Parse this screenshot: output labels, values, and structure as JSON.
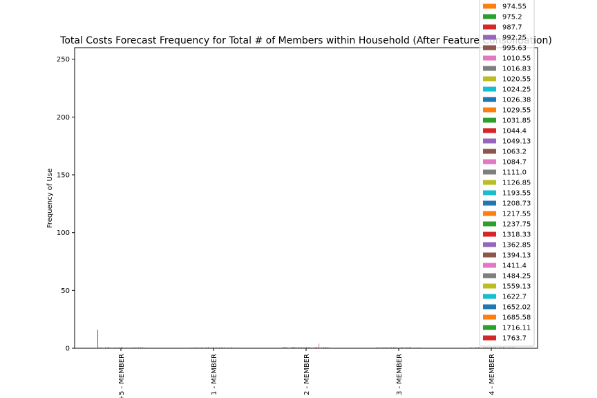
{
  "chart_data": {
    "type": "bar",
    "title": "Total Costs Forecast Frequency for Total # of Members within Household (After Feature Consolidation)",
    "xlabel": "",
    "ylabel": "Frequency of Use",
    "categories": [
      "+5 - MEMBER",
      "1 - MEMBER",
      "2 - MEMBER",
      "3 - MEMBER",
      "4 - MEMBER"
    ],
    "ylim": [
      0,
      260
    ],
    "yticks": [
      0,
      50,
      100,
      150,
      200,
      250
    ],
    "grid": false,
    "legend_position": "upper-right",
    "legend_entries": [
      {
        "name": "974.55",
        "color": "#ff7f0e"
      },
      {
        "name": "975.2",
        "color": "#2ca02c"
      },
      {
        "name": "987.7",
        "color": "#d62728"
      },
      {
        "name": "992.25",
        "color": "#9467bd"
      },
      {
        "name": "995.63",
        "color": "#8c564b"
      },
      {
        "name": "1010.55",
        "color": "#e377c2"
      },
      {
        "name": "1016.83",
        "color": "#7f7f7f"
      },
      {
        "name": "1020.55",
        "color": "#bcbd22"
      },
      {
        "name": "1024.25",
        "color": "#17becf"
      },
      {
        "name": "1026.38",
        "color": "#1f77b4"
      },
      {
        "name": "1029.55",
        "color": "#ff7f0e"
      },
      {
        "name": "1031.85",
        "color": "#2ca02c"
      },
      {
        "name": "1044.4",
        "color": "#d62728"
      },
      {
        "name": "1049.13",
        "color": "#9467bd"
      },
      {
        "name": "1063.2",
        "color": "#8c564b"
      },
      {
        "name": "1084.7",
        "color": "#e377c2"
      },
      {
        "name": "1111.0",
        "color": "#7f7f7f"
      },
      {
        "name": "1126.85",
        "color": "#bcbd22"
      },
      {
        "name": "1193.55",
        "color": "#17becf"
      },
      {
        "name": "1208.73",
        "color": "#1f77b4"
      },
      {
        "name": "1217.55",
        "color": "#ff7f0e"
      },
      {
        "name": "1237.75",
        "color": "#2ca02c"
      },
      {
        "name": "1318.33",
        "color": "#d62728"
      },
      {
        "name": "1362.85",
        "color": "#9467bd"
      },
      {
        "name": "1394.13",
        "color": "#8c564b"
      },
      {
        "name": "1411.4",
        "color": "#e377c2"
      },
      {
        "name": "1484.25",
        "color": "#7f7f7f"
      },
      {
        "name": "1559.13",
        "color": "#bcbd22"
      },
      {
        "name": "1622.7",
        "color": "#17becf"
      },
      {
        "name": "1652.02",
        "color": "#1f77b4"
      },
      {
        "name": "1685.58",
        "color": "#ff7f0e"
      },
      {
        "name": "1716.11",
        "color": "#2ca02c"
      },
      {
        "name": "1763.7",
        "color": "#d62728"
      }
    ],
    "series_colors": [
      "#1f77b4",
      "#ff7f0e",
      "#2ca02c",
      "#d62728",
      "#9467bd",
      "#8c564b",
      "#e377c2",
      "#7f7f7f",
      "#bcbd22",
      "#17becf"
    ],
    "bars_per_group": 60,
    "group_values": [
      [
        16,
        1,
        0,
        0,
        1,
        0,
        0,
        0,
        1,
        0,
        1,
        0,
        0,
        1,
        1,
        0,
        1,
        0,
        1,
        0,
        0,
        0,
        1,
        0,
        0,
        0,
        1,
        1,
        0,
        0,
        1,
        0,
        1,
        0,
        0,
        0,
        1,
        0,
        1,
        0,
        0,
        1,
        0,
        0,
        1,
        0,
        0,
        1,
        0,
        1,
        0,
        0,
        1,
        0,
        0,
        1,
        0,
        1,
        0,
        1
      ],
      [
        0,
        1,
        0,
        0,
        1,
        0,
        1,
        1,
        0,
        1,
        0,
        1,
        0,
        0,
        1,
        0,
        1,
        0,
        0,
        0,
        1,
        0,
        0,
        1,
        0,
        0,
        0,
        1,
        0,
        0,
        1,
        0,
        0,
        1,
        0,
        0,
        0,
        1,
        0,
        0,
        1,
        0,
        0,
        0,
        1,
        0,
        0,
        0,
        0,
        1,
        0,
        0,
        0,
        1,
        0,
        0,
        0,
        0,
        1,
        0
      ],
      [
        1,
        1,
        1,
        1,
        0,
        1,
        1,
        0,
        1,
        1,
        0,
        1,
        1,
        1,
        0,
        1,
        1,
        1,
        1,
        0,
        1,
        1,
        0,
        1,
        1,
        0,
        1,
        1,
        1,
        0,
        1,
        1,
        0,
        1,
        1,
        0,
        1,
        0,
        1,
        1,
        0,
        1,
        1,
        1,
        0,
        1,
        4,
        0,
        1,
        1,
        0,
        1,
        1,
        0,
        1,
        1,
        0,
        1,
        1,
        1
      ],
      [
        0,
        1,
        1,
        0,
        1,
        0,
        1,
        1,
        0,
        0,
        1,
        0,
        1,
        0,
        1,
        0,
        0,
        1,
        0,
        1,
        1,
        0,
        0,
        1,
        0,
        1,
        0,
        1,
        1,
        0,
        0,
        1,
        0,
        1,
        0,
        1,
        0,
        0,
        1,
        0,
        1,
        0,
        0,
        1,
        0,
        1,
        0,
        0,
        1,
        0,
        0,
        1,
        0,
        0,
        1,
        0,
        0,
        1,
        0,
        0
      ],
      [
        0,
        1,
        0,
        0,
        1,
        0,
        1,
        0,
        1,
        0,
        1,
        0,
        0,
        1,
        0,
        1,
        0,
        0,
        1,
        0,
        1,
        0,
        1,
        0,
        0,
        1,
        0,
        1,
        1,
        0,
        1,
        0,
        0,
        1,
        0,
        1,
        0,
        1,
        0,
        0,
        1,
        0,
        1,
        0,
        0,
        1,
        0,
        1,
        0,
        1,
        0,
        0,
        1,
        0,
        1,
        0,
        0,
        1,
        0,
        1
      ]
    ]
  }
}
